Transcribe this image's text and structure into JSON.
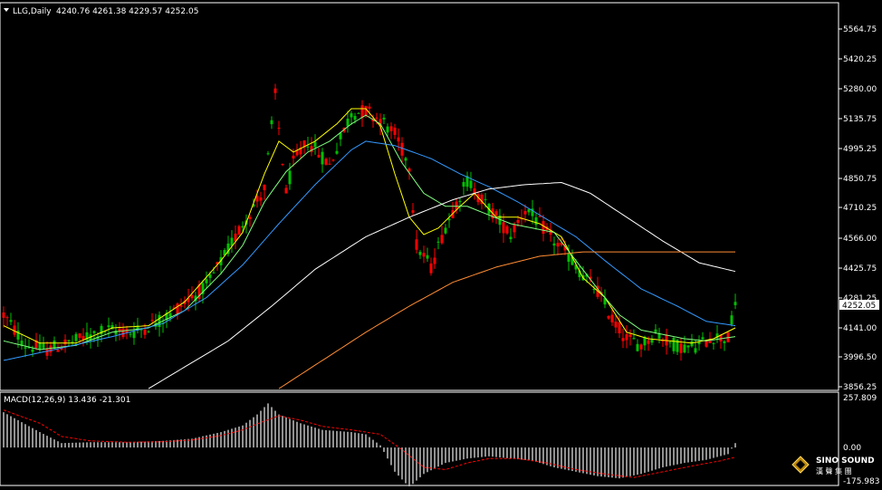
{
  "header": {
    "symbol": "LLG,Daily",
    "ohlc": "4240.76 4261.38 4229.57 4252.05"
  },
  "price_panel": {
    "ticks": [
      "5564.75",
      "5420.25",
      "5280.00",
      "5135.75",
      "4995.25",
      "4850.75",
      "4710.25",
      "4566.00",
      "4425.75",
      "4281.25",
      "4141.00",
      "3996.50",
      "3856.25"
    ],
    "current_price": "4252.05"
  },
  "macd_panel": {
    "label": "MACD(12,26,9) 13.436 -21.301",
    "ticks": [
      "257.809",
      "0.00",
      "-175.983"
    ]
  },
  "logo": {
    "brand": "SINO SOUND",
    "subtitle": "漢 聲 集 團"
  },
  "colors": {
    "background": "#000000",
    "bull_candle": "#00c000",
    "bear_candle": "#ff0000",
    "ma_fast": "#ffff00",
    "ma_medium": "#80ff80",
    "ma_slow": "#3399ff",
    "ma_long": "#ffffff",
    "ma_longest": "#ff8c33",
    "macd_hist": "#c0c0c0",
    "macd_signal": "#ff0000",
    "price_label_bg": "#ffffff"
  },
  "chart_data": {
    "type": "candlestick",
    "price_range": [
      3856.25,
      5634
    ],
    "macd_range": [
      -175.983,
      257.809
    ],
    "anchors": [
      [
        0,
        4200
      ],
      [
        6,
        4060
      ],
      [
        12,
        4040
      ],
      [
        20,
        4080
      ],
      [
        28,
        4130
      ],
      [
        36,
        4120
      ],
      [
        44,
        4180
      ],
      [
        50,
        4260
      ],
      [
        56,
        4330
      ],
      [
        62,
        4500
      ],
      [
        66,
        4620
      ],
      [
        72,
        4780
      ],
      [
        75,
        5210
      ],
      [
        78,
        4760
      ],
      [
        80,
        4900
      ],
      [
        84,
        5000
      ],
      [
        90,
        4890
      ],
      [
        96,
        5130
      ],
      [
        100,
        5140
      ],
      [
        104,
        5100
      ],
      [
        108,
        5030
      ],
      [
        112,
        4890
      ],
      [
        114,
        4520
      ],
      [
        118,
        4420
      ],
      [
        122,
        4610
      ],
      [
        128,
        4820
      ],
      [
        132,
        4730
      ],
      [
        136,
        4650
      ],
      [
        140,
        4570
      ],
      [
        144,
        4690
      ],
      [
        148,
        4620
      ],
      [
        152,
        4540
      ],
      [
        156,
        4470
      ],
      [
        160,
        4380
      ],
      [
        164,
        4310
      ],
      [
        168,
        4180
      ],
      [
        172,
        4090
      ],
      [
        176,
        4060
      ],
      [
        180,
        4120
      ],
      [
        184,
        4070
      ],
      [
        188,
        4050
      ],
      [
        192,
        4060
      ],
      [
        196,
        4100
      ],
      [
        200,
        4090
      ],
      [
        202,
        4250
      ]
    ],
    "ma_anchors": {
      "ma_fast": [
        [
          0,
          4150
        ],
        [
          10,
          4070
        ],
        [
          20,
          4070
        ],
        [
          30,
          4140
        ],
        [
          40,
          4150
        ],
        [
          50,
          4260
        ],
        [
          60,
          4450
        ],
        [
          66,
          4580
        ],
        [
          72,
          4850
        ],
        [
          76,
          5000
        ],
        [
          80,
          4950
        ],
        [
          86,
          5000
        ],
        [
          92,
          5080
        ],
        [
          96,
          5150
        ],
        [
          100,
          5150
        ],
        [
          104,
          5070
        ],
        [
          108,
          4850
        ],
        [
          112,
          4650
        ],
        [
          116,
          4570
        ],
        [
          120,
          4600
        ],
        [
          126,
          4700
        ],
        [
          130,
          4760
        ],
        [
          136,
          4650
        ],
        [
          142,
          4650
        ],
        [
          148,
          4620
        ],
        [
          154,
          4560
        ],
        [
          160,
          4370
        ],
        [
          166,
          4280
        ],
        [
          172,
          4120
        ],
        [
          178,
          4090
        ],
        [
          184,
          4080
        ],
        [
          190,
          4070
        ],
        [
          196,
          4090
        ],
        [
          202,
          4140
        ]
      ],
      "ma_medium": [
        [
          0,
          4080
        ],
        [
          10,
          4040
        ],
        [
          20,
          4060
        ],
        [
          30,
          4120
        ],
        [
          40,
          4140
        ],
        [
          50,
          4220
        ],
        [
          60,
          4390
        ],
        [
          66,
          4520
        ],
        [
          72,
          4720
        ],
        [
          78,
          4860
        ],
        [
          84,
          4950
        ],
        [
          90,
          5000
        ],
        [
          96,
          5080
        ],
        [
          100,
          5120
        ],
        [
          104,
          5080
        ],
        [
          110,
          4900
        ],
        [
          116,
          4760
        ],
        [
          122,
          4700
        ],
        [
          128,
          4700
        ],
        [
          134,
          4660
        ],
        [
          140,
          4620
        ],
        [
          146,
          4600
        ],
        [
          152,
          4580
        ],
        [
          158,
          4450
        ],
        [
          164,
          4320
        ],
        [
          170,
          4200
        ],
        [
          176,
          4130
        ],
        [
          182,
          4110
        ],
        [
          188,
          4090
        ],
        [
          194,
          4080
        ],
        [
          202,
          4100
        ]
      ],
      "ma_slow": [
        [
          0,
          3990
        ],
        [
          14,
          4040
        ],
        [
          30,
          4100
        ],
        [
          44,
          4160
        ],
        [
          56,
          4280
        ],
        [
          66,
          4430
        ],
        [
          76,
          4620
        ],
        [
          86,
          4800
        ],
        [
          96,
          4960
        ],
        [
          100,
          5000
        ],
        [
          108,
          4980
        ],
        [
          118,
          4920
        ],
        [
          126,
          4850
        ],
        [
          134,
          4790
        ],
        [
          142,
          4720
        ],
        [
          150,
          4640
        ],
        [
          158,
          4560
        ],
        [
          166,
          4450
        ],
        [
          176,
          4320
        ],
        [
          186,
          4240
        ],
        [
          194,
          4170
        ],
        [
          202,
          4150
        ]
      ],
      "ma_long": [
        [
          40,
          3860
        ],
        [
          50,
          3960
        ],
        [
          62,
          4080
        ],
        [
          74,
          4240
        ],
        [
          86,
          4410
        ],
        [
          100,
          4560
        ],
        [
          112,
          4650
        ],
        [
          124,
          4730
        ],
        [
          134,
          4780
        ],
        [
          144,
          4800
        ],
        [
          154,
          4810
        ],
        [
          162,
          4760
        ],
        [
          172,
          4650
        ],
        [
          182,
          4540
        ],
        [
          192,
          4440
        ],
        [
          202,
          4400
        ]
      ],
      "ma_longest": [
        [
          76,
          3860
        ],
        [
          88,
          3990
        ],
        [
          100,
          4120
        ],
        [
          112,
          4240
        ],
        [
          124,
          4350
        ],
        [
          136,
          4420
        ],
        [
          148,
          4470
        ],
        [
          160,
          4490
        ],
        [
          172,
          4490
        ],
        [
          184,
          4490
        ],
        [
          196,
          4490
        ],
        [
          202,
          4490
        ]
      ]
    },
    "macd_anchors": [
      [
        0,
        0.8
      ],
      [
        10,
        0.35
      ],
      [
        16,
        0.1
      ],
      [
        24,
        0.12
      ],
      [
        34,
        0.12
      ],
      [
        44,
        0.15
      ],
      [
        52,
        0.2
      ],
      [
        60,
        0.35
      ],
      [
        66,
        0.5
      ],
      [
        70,
        0.75
      ],
      [
        73,
        1.0
      ],
      [
        76,
        0.75
      ],
      [
        82,
        0.55
      ],
      [
        88,
        0.4
      ],
      [
        96,
        0.35
      ],
      [
        100,
        0.3
      ],
      [
        104,
        0.05
      ],
      [
        108,
        -0.55
      ],
      [
        112,
        -0.9
      ],
      [
        116,
        -0.6
      ],
      [
        122,
        -0.35
      ],
      [
        128,
        -0.25
      ],
      [
        134,
        -0.2
      ],
      [
        140,
        -0.25
      ],
      [
        146,
        -0.3
      ],
      [
        152,
        -0.45
      ],
      [
        158,
        -0.55
      ],
      [
        164,
        -0.65
      ],
      [
        170,
        -0.7
      ],
      [
        176,
        -0.6
      ],
      [
        182,
        -0.45
      ],
      [
        188,
        -0.35
      ],
      [
        194,
        -0.28
      ],
      [
        200,
        -0.15
      ],
      [
        202,
        0.1
      ]
    ],
    "signal_anchors": [
      [
        0,
        0.85
      ],
      [
        10,
        0.55
      ],
      [
        16,
        0.25
      ],
      [
        24,
        0.15
      ],
      [
        34,
        0.12
      ],
      [
        44,
        0.13
      ],
      [
        52,
        0.17
      ],
      [
        60,
        0.27
      ],
      [
        66,
        0.4
      ],
      [
        72,
        0.6
      ],
      [
        76,
        0.72
      ],
      [
        82,
        0.62
      ],
      [
        88,
        0.48
      ],
      [
        96,
        0.4
      ],
      [
        104,
        0.3
      ],
      [
        110,
        -0.05
      ],
      [
        116,
        -0.45
      ],
      [
        122,
        -0.5
      ],
      [
        128,
        -0.35
      ],
      [
        134,
        -0.25
      ],
      [
        142,
        -0.25
      ],
      [
        150,
        -0.35
      ],
      [
        158,
        -0.5
      ],
      [
        166,
        -0.6
      ],
      [
        174,
        -0.68
      ],
      [
        182,
        -0.55
      ],
      [
        190,
        -0.42
      ],
      [
        198,
        -0.3
      ],
      [
        202,
        -0.22
      ]
    ]
  }
}
